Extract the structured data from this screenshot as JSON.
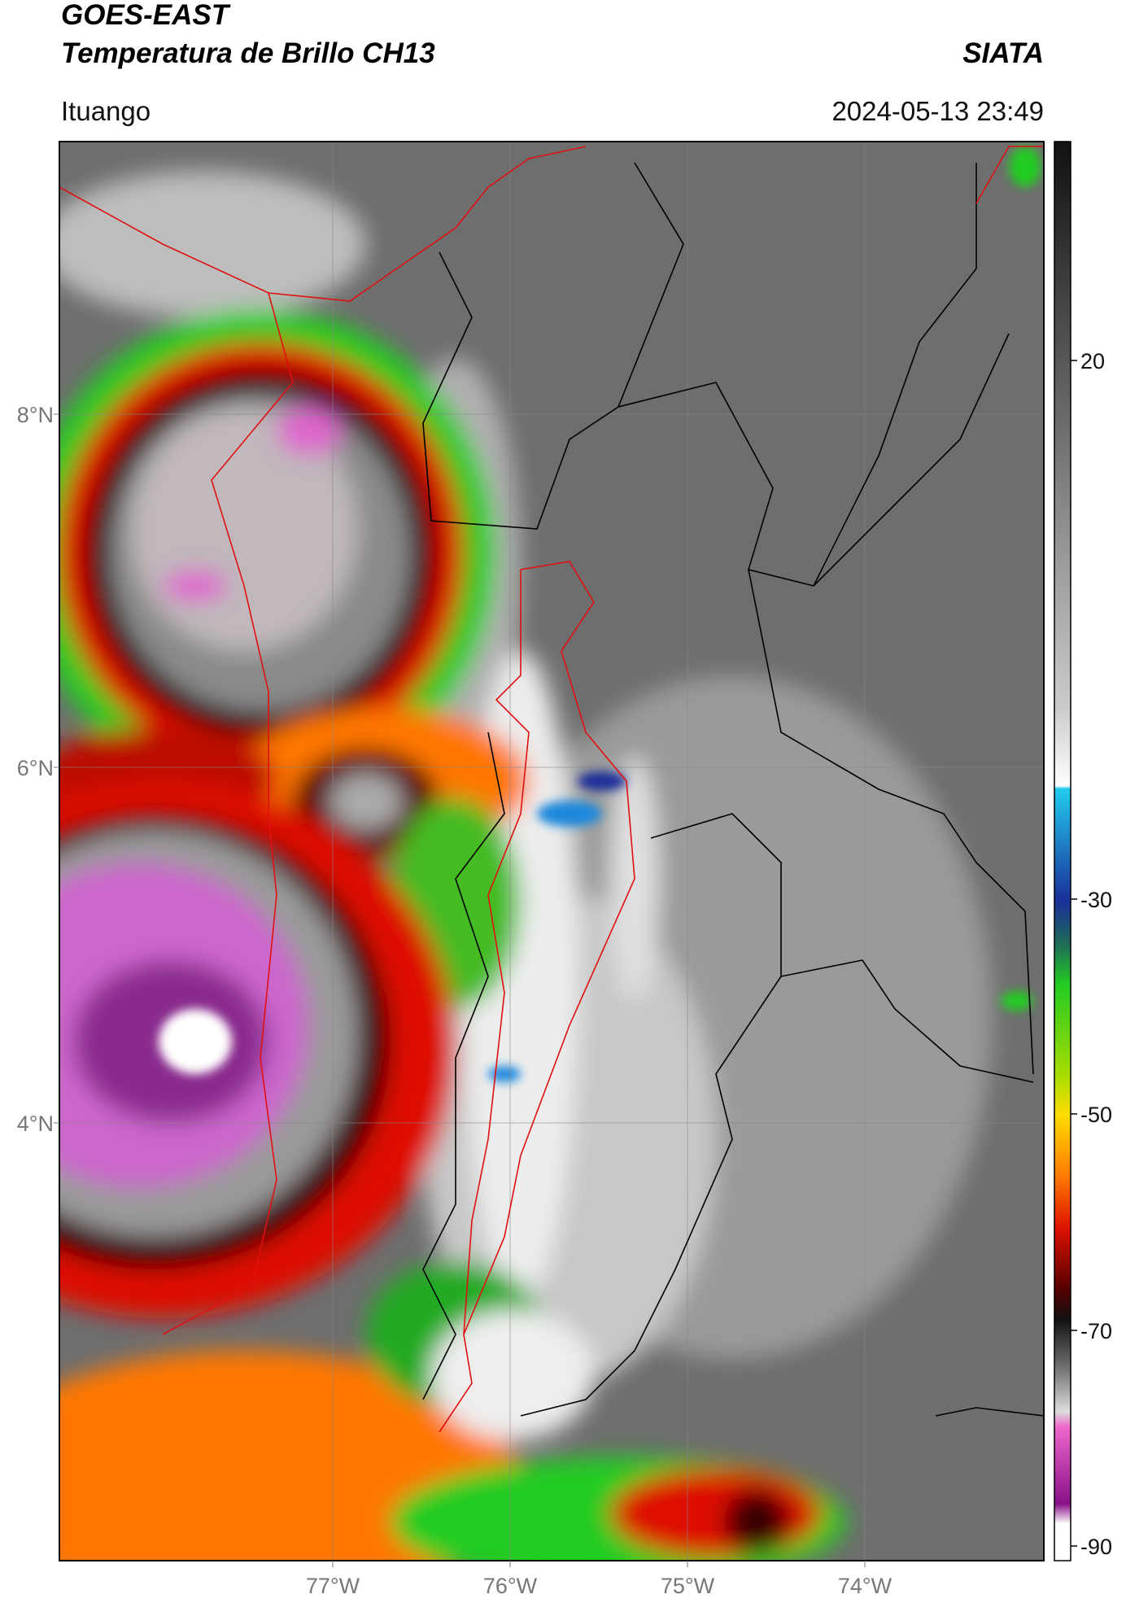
{
  "header": {
    "title": "GOES-EAST",
    "subtitle": "Temperatura de Brillo CH13",
    "source": "SIATA",
    "location": "Ituango",
    "timestamp": "2024-05-13 23:49"
  },
  "map": {
    "lat_labels": [
      "8°N",
      "6°N",
      "4°N"
    ],
    "lon_labels": [
      "77°W",
      "76°W",
      "75°W",
      "74°W"
    ]
  },
  "colorbar": {
    "ticks": [
      "20",
      "-30",
      "-50",
      "-70",
      "-90"
    ]
  }
}
